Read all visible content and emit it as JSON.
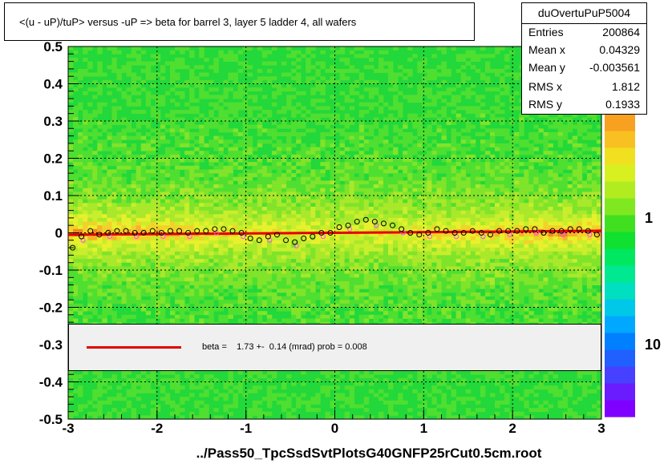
{
  "title": "<(u - uP)/tuP>  versus  -uP => beta for barrel 3, layer 5 ladder 4, all wafers",
  "stats": {
    "name": "duOvertuPuP5004",
    "rows": [
      {
        "key": "Entries",
        "value": "200864"
      },
      {
        "key": "Mean x",
        "value": "0.04329"
      },
      {
        "key": "Mean y",
        "value": "-0.003561"
      },
      {
        "key": "RMS x",
        "value": "1.812"
      },
      {
        "key": "RMS y",
        "value": "0.1933"
      }
    ]
  },
  "legend": {
    "fit_text": "beta =    1.73 +-  0.14 (mrad) prob = 0.008",
    "line_color": "#e00000"
  },
  "colors": {
    "plot_bg": "#22d83a",
    "fit_line": "#e00000",
    "profile_marker": "#000000",
    "profile_marker_alt": "#ff44ff"
  },
  "chart_data": {
    "type": "heatmap",
    "title": "<(u - uP)/tuP>  versus  -uP => beta for barrel 3, layer 5 ladder 4, all wafers",
    "xlabel": "../Pass50_TpcSsdSvtPlotsG40GNFP25rCut0.5cm.root",
    "ylabel": "",
    "xlim": [
      -3,
      3
    ],
    "ylim": [
      -0.5,
      0.5
    ],
    "x_ticks": [
      "-3",
      "-2",
      "-1",
      "0",
      "1",
      "2",
      "3"
    ],
    "y_ticks": [
      "-0.5",
      "-0.4",
      "-0.3",
      "-0.2",
      "-0.1",
      "0",
      "0.1",
      "0.2",
      "0.3",
      "0.4",
      "0.5"
    ],
    "colorbar_labels": [
      {
        "label": "1",
        "value": 1
      },
      {
        "label": "10",
        "value": 10
      }
    ],
    "colorbar_scale": "log",
    "grid": true,
    "fit_line": {
      "x": [
        -3,
        3
      ],
      "y": [
        -0.0052,
        0.0052
      ]
    },
    "profile": {
      "x": [
        -2.95,
        -2.85,
        -2.75,
        -2.65,
        -2.55,
        -2.45,
        -2.35,
        -2.25,
        -2.15,
        -2.05,
        -1.95,
        -1.85,
        -1.75,
        -1.65,
        -1.55,
        -1.45,
        -1.35,
        -1.25,
        -1.15,
        -1.05,
        -0.95,
        -0.85,
        -0.75,
        -0.65,
        -0.55,
        -0.45,
        -0.35,
        -0.25,
        -0.15,
        -0.05,
        0.05,
        0.15,
        0.25,
        0.35,
        0.45,
        0.55,
        0.65,
        0.75,
        0.85,
        0.95,
        1.05,
        1.15,
        1.25,
        1.35,
        1.45,
        1.55,
        1.65,
        1.75,
        1.85,
        1.95,
        2.05,
        2.15,
        2.25,
        2.35,
        2.45,
        2.55,
        2.65,
        2.75,
        2.85,
        2.95
      ],
      "y": [
        -0.04,
        -0.01,
        0.005,
        -0.005,
        0.0,
        0.005,
        0.005,
        0.0,
        0.0,
        0.005,
        0.0,
        0.005,
        0.005,
        0.0,
        0.005,
        0.005,
        0.01,
        0.01,
        0.005,
        0.0,
        -0.015,
        -0.02,
        -0.01,
        -0.005,
        -0.02,
        -0.025,
        -0.015,
        -0.01,
        0.0,
        0.0,
        0.015,
        0.02,
        0.03,
        0.035,
        0.03,
        0.025,
        0.02,
        0.01,
        0.0,
        -0.005,
        0.0,
        0.01,
        0.005,
        0.0,
        0.0,
        0.005,
        0.0,
        -0.005,
        0.005,
        0.005,
        0.005,
        0.01,
        0.01,
        0.0,
        0.005,
        0.005,
        0.01,
        0.01,
        0.005,
        -0.005
      ]
    }
  }
}
